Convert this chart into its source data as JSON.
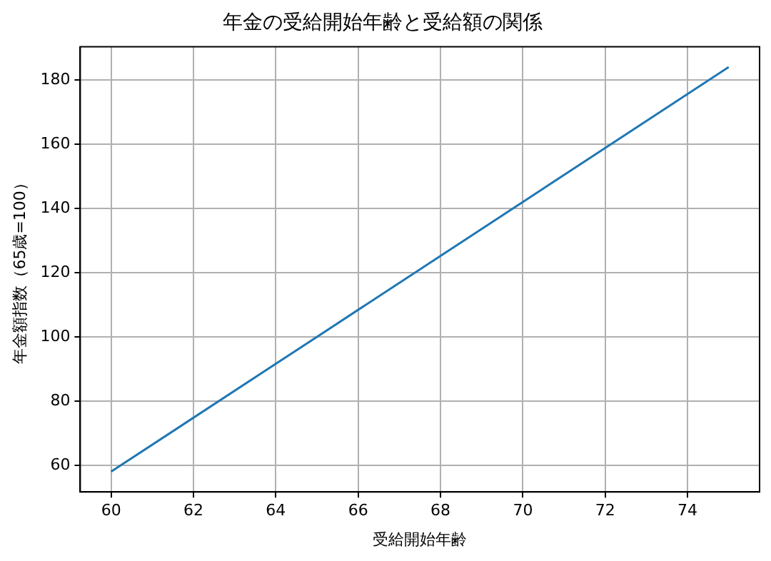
{
  "chart_data": {
    "type": "line",
    "title": "年金の受給開始年齢と受給額の関係",
    "xlabel": "受給開始年齢",
    "ylabel": "年金額指数（65歳=100）",
    "x": [
      60,
      65,
      70,
      75
    ],
    "series": [
      {
        "color": "#1f77b4",
        "values": [
          58,
          100,
          142,
          184
        ]
      }
    ],
    "xlim": [
      59.25,
      75.75
    ],
    "xticks": [
      60,
      62,
      64,
      66,
      68,
      70,
      72,
      74
    ],
    "ylim": [
      51.7,
      190.3
    ],
    "yticks": [
      60,
      80,
      100,
      120,
      140,
      160,
      180
    ],
    "grid": true,
    "legend": false,
    "marker": "none",
    "line_style": "solid"
  }
}
